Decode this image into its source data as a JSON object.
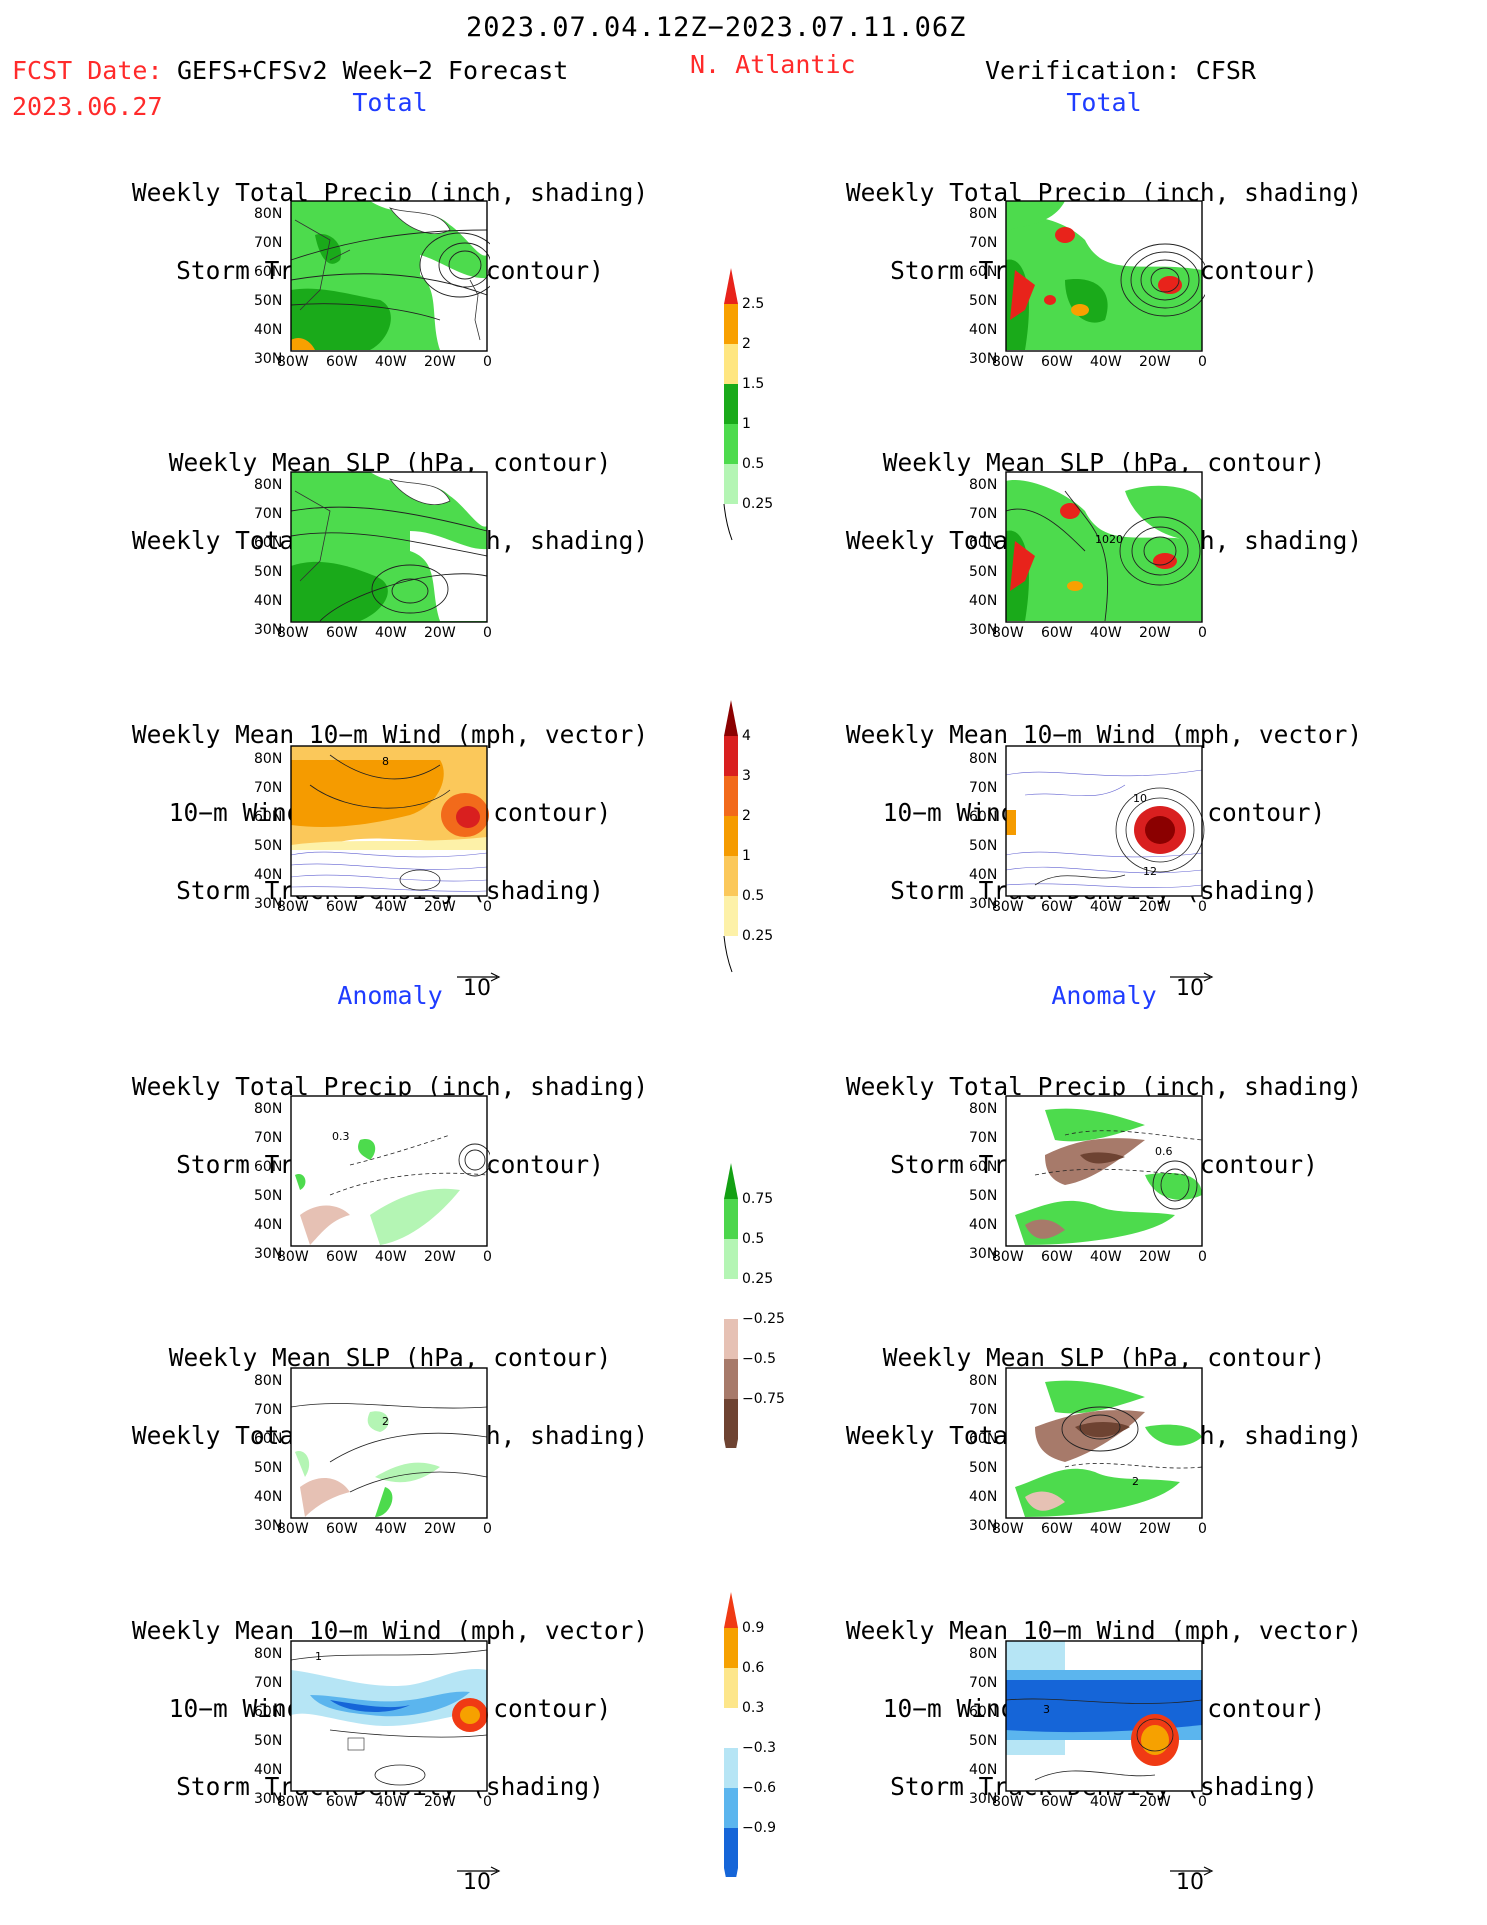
{
  "header": {
    "date_range": "2023.07.04.12Z−2023.07.11.06Z",
    "fcst_label": "FCST Date:",
    "fcst_model": "GEFS+CFSv2 Week−2 Forecast",
    "fcst_date": "2023.06.27",
    "region": "N. Atlantic",
    "verification": "Verification: CFSR"
  },
  "sections": {
    "total": "Total",
    "anomaly": "Anomaly"
  },
  "axes": {
    "lat_ticks": [
      "80N",
      "70N",
      "60N",
      "50N",
      "40N",
      "30N"
    ],
    "lon_ticks": [
      "80W",
      "60W",
      "40W",
      "20W",
      "0"
    ]
  },
  "panels": {
    "precip_storm": [
      "Weekly Total Precip (inch, shading)",
      "Storm Track Density (contour)"
    ],
    "slp_precip": [
      "Weekly Mean SLP (hPa, contour)",
      "Weekly Total Precip (inch, shading)"
    ],
    "wind_storm": [
      "Weekly Mean 10−m Wind (mph, vector)",
      "10−m Wind Speed (mph, contour)",
      "Storm Track Density (shading)"
    ]
  },
  "contour_labels": {
    "slp_cfsr_total": "1020",
    "wind_fcst_total": "8",
    "wind_cfsr_total_a": "10",
    "wind_cfsr_total_b": "12",
    "precip_fcst_anom": "0.3",
    "precip_cfsr_anom": "0.6",
    "slp_fcst_anom": "2",
    "slp_cfsr_anom": "2",
    "wind_fcst_anom": "1",
    "wind_cfsr_anom": "3"
  },
  "vector_ref": "10",
  "colorbars": {
    "precip_total": {
      "labels": [
        "2.5",
        "2",
        "1.5",
        "1",
        "0.5",
        "0.25"
      ],
      "colors": [
        "#e8231b",
        "#f8a000",
        "#ffe680",
        "#1aaa1a",
        "#4ddb4d",
        "#b4f5b4"
      ]
    },
    "storm_total": {
      "labels": [
        "4",
        "3",
        "2",
        "1",
        "0.5",
        "0.25"
      ],
      "colors": [
        "#8b0000",
        "#d91f1f",
        "#f26a1b",
        "#f59b00",
        "#fbc85a",
        "#fdf1a8"
      ]
    },
    "precip_anom": {
      "labels": [
        "0.75",
        "0.5",
        "0.25",
        "−0.25",
        "−0.5",
        "−0.75"
      ],
      "colors": [
        "#13a013",
        "#4cd64c",
        "#b4f5b4",
        "#ffffff",
        "#e6c1b4",
        "#a77a6a",
        "#6e4332"
      ]
    },
    "storm_anom": {
      "labels": [
        "0.9",
        "0.6",
        "0.3",
        "−0.3",
        "−0.6",
        "−0.9"
      ],
      "colors": [
        "#f03a14",
        "#f6a100",
        "#fde68a",
        "#ffffff",
        "#b6e5f5",
        "#5bb5ee",
        "#1565d8"
      ]
    }
  }
}
